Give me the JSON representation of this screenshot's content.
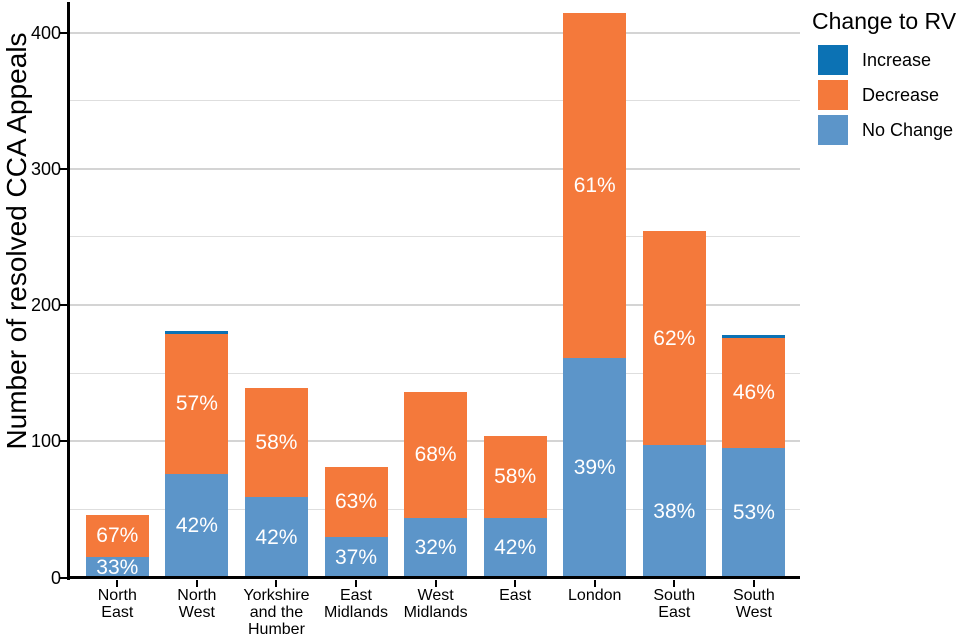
{
  "figure": {
    "y_axis_title": "Number of resolved CCA Appeals",
    "legend": {
      "title": "Change to RV",
      "items": [
        {
          "label": "Increase",
          "color": "#0C72B4"
        },
        {
          "label": "Decrease",
          "color": "#F4793B"
        },
        {
          "label": "No Change",
          "color": "#5C95C9"
        }
      ]
    }
  },
  "chart_data": {
    "type": "bar",
    "stacked": true,
    "title": "",
    "xlabel": "",
    "ylabel": "Number of resolved CCA Appeals",
    "ylim": [
      0,
      420
    ],
    "yticks": [
      0,
      100,
      200,
      300,
      400
    ],
    "gridline_step": 50,
    "grid": "horizontal light gray, every 50",
    "legend_position": "right",
    "legend_title": "Change to RV",
    "categories": [
      "North East",
      "North West",
      "Yorkshire and the Humber",
      "East Midlands",
      "West Midlands",
      "East",
      "London",
      "South East",
      "South West"
    ],
    "category_label_lines": [
      [
        "North",
        "East"
      ],
      [
        "North",
        "West"
      ],
      [
        "Yorkshire",
        "and the",
        "Humber"
      ],
      [
        "East",
        "Midlands"
      ],
      [
        "West",
        "Midlands"
      ],
      [
        "East"
      ],
      [
        "London"
      ],
      [
        "South",
        "East"
      ],
      [
        "South",
        "West"
      ]
    ],
    "series": [
      {
        "name": "No Change",
        "color": "#5C95C9",
        "values": [
          15,
          76,
          59,
          30,
          44,
          44,
          161,
          97,
          95
        ],
        "pct_labels": [
          "33%",
          "42%",
          "42%",
          "37%",
          "32%",
          "42%",
          "39%",
          "38%",
          "53%"
        ]
      },
      {
        "name": "Decrease",
        "color": "#F4793B",
        "values": [
          31,
          103,
          80,
          51,
          92,
          60,
          253,
          157,
          81
        ],
        "pct_labels": [
          "67%",
          "57%",
          "58%",
          "63%",
          "68%",
          "58%",
          "61%",
          "62%",
          "46%"
        ]
      },
      {
        "name": "Increase",
        "color": "#0C72B4",
        "values": [
          0,
          2,
          0,
          0,
          0,
          0,
          0,
          0,
          2
        ],
        "pct_labels": [
          "",
          "",
          "",
          "",
          "",
          "",
          "",
          "",
          ""
        ]
      }
    ],
    "totals": [
      46,
      181,
      139,
      81,
      136,
      104,
      414,
      254,
      178
    ]
  }
}
